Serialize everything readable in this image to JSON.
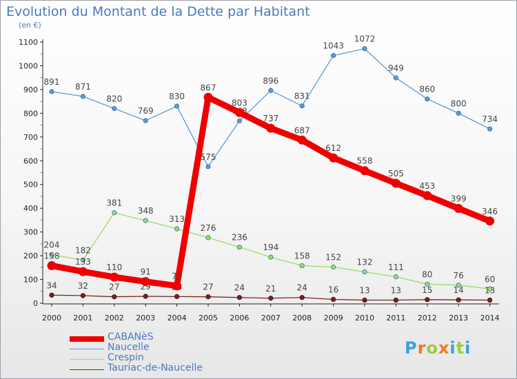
{
  "chart_data": {
    "type": "line",
    "title": "Evolution du Montant de la Dette par Habitant",
    "unit_label": "(en €)",
    "x": [
      "2000",
      "2001",
      "2002",
      "2003",
      "2004",
      "2005",
      "2006",
      "2007",
      "2008",
      "2009",
      "2010",
      "2011",
      "2012",
      "2013",
      "2014"
    ],
    "ylim": [
      0,
      1100
    ],
    "yticks": [
      0,
      100,
      200,
      300,
      400,
      500,
      600,
      700,
      800,
      900,
      1000,
      1100
    ],
    "grid": false,
    "legend_position": "bottom-left",
    "series": [
      {
        "name": "CABANèS",
        "color": "#ee0000",
        "values": [
          158,
          133,
          110,
          91,
          73,
          867,
          803,
          737,
          687,
          612,
          558,
          505,
          453,
          399,
          346
        ]
      },
      {
        "name": "Naucelle",
        "color": "#5b9bd5",
        "values": [
          891,
          871,
          820,
          769,
          830,
          575,
          768,
          896,
          831,
          1043,
          1072,
          949,
          860,
          800,
          734
        ]
      },
      {
        "name": "Crespin",
        "color": "#99dd66",
        "values": [
          204,
          182,
          381,
          348,
          313,
          276,
          236,
          194,
          158,
          152,
          132,
          111,
          80,
          76,
          60
        ]
      },
      {
        "name": "Tauriac-de-Naucelle",
        "color": "#772222",
        "values": [
          34,
          32,
          27,
          29,
          28,
          27,
          24,
          21,
          24,
          16,
          13,
          13,
          15,
          14,
          13
        ]
      }
    ]
  },
  "logo": {
    "letters": [
      "P",
      "r",
      "o",
      "x",
      "i",
      "t",
      "i"
    ],
    "colors": [
      "#3aa0dd",
      "#f07820",
      "#9ccc3c",
      "#f07820",
      "#3aa0dd",
      "#9ccc3c",
      "#3aa0dd"
    ]
  }
}
